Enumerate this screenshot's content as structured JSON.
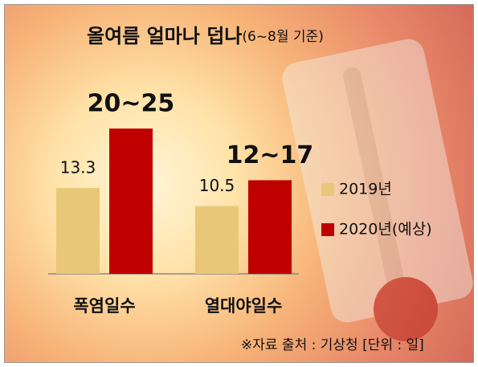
{
  "chart_data": {
    "type": "bar",
    "title": "올여름 얼마나 덥나",
    "subtitle": "(6~8월 기준)",
    "categories": [
      "폭염일수",
      "열대야일수"
    ],
    "series": [
      {
        "name": "2019년",
        "color": "#e8c878",
        "values": [
          13.3,
          10.5
        ]
      },
      {
        "name": "2020년(예상)",
        "color": "#c00000",
        "values": [
          22.5,
          14.5
        ],
        "value_labels": [
          "20~25",
          "12~17"
        ]
      }
    ],
    "ylim": [
      0,
      25
    ],
    "legend": "right",
    "source": "※자료 출처 : 기상청 [단위 : 일]"
  }
}
